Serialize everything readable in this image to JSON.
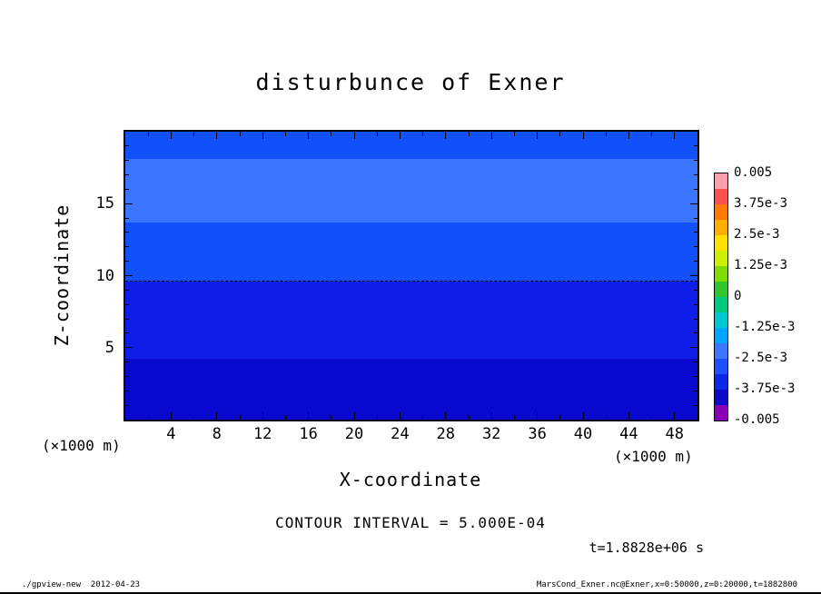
{
  "page": {
    "footer_left": "./gpview-new  2012-04-23",
    "footer_right": "MarsCond_Exner.nc@Exner,x=0:50000,z=0:20000,t=1882800"
  },
  "chart_data": {
    "type": "heatmap",
    "title": "disturbunce of Exner",
    "xlabel": "X-coordinate",
    "ylabel": "Z-coordinate",
    "x_unit": "(×1000 m)",
    "y_unit": "(×1000 m)",
    "xlim": [
      0,
      50
    ],
    "ylim": [
      0,
      20
    ],
    "x_major_ticks": [
      4,
      8,
      12,
      16,
      20,
      24,
      28,
      32,
      36,
      40,
      44,
      48
    ],
    "x_minor_ticks": [
      2,
      6,
      10,
      14,
      18,
      22,
      26,
      30,
      34,
      38,
      42,
      46
    ],
    "y_major_ticks": [
      5,
      10,
      15
    ],
    "y_minor_ticks": [
      1,
      2,
      3,
      4,
      6,
      7,
      8,
      9,
      11,
      12,
      13,
      14,
      16,
      17,
      18,
      19
    ],
    "grid": false,
    "bands": [
      {
        "z_from": 0,
        "z_to": 4.2,
        "color": "#0808cf"
      },
      {
        "z_from": 4.2,
        "z_to": 9.6,
        "color": "#0f1de8"
      },
      {
        "z_from": 9.6,
        "z_to": 13.7,
        "color": "#1250fa"
      },
      {
        "z_from": 13.7,
        "z_to": 18.1,
        "color": "#3a74ff"
      },
      {
        "z_from": 18.1,
        "z_to": 20,
        "color": "#1250fa"
      }
    ],
    "dashed_contour_z": 9.6,
    "colorbar": {
      "labels": [
        "0.005",
        "3.75e-3",
        "2.5e-3",
        "1.25e-3",
        "0",
        "-1.25e-3",
        "-2.5e-3",
        "-3.75e-3",
        "-0.005"
      ],
      "colors": [
        "#ff9db0",
        "#ff5050",
        "#ff7a00",
        "#ffae00",
        "#ffe000",
        "#cdef00",
        "#7fdc00",
        "#2fc52f",
        "#00c87d",
        "#00c8d2",
        "#00a5ff",
        "#3c78ff",
        "#1e50ff",
        "#0a28e6",
        "#0a0ac8",
        "#8c00b4"
      ],
      "position": "right"
    },
    "annotations": {
      "contour_interval": "CONTOUR INTERVAL = 5.000E-04",
      "time": "t=1.8828e+06 s"
    }
  }
}
